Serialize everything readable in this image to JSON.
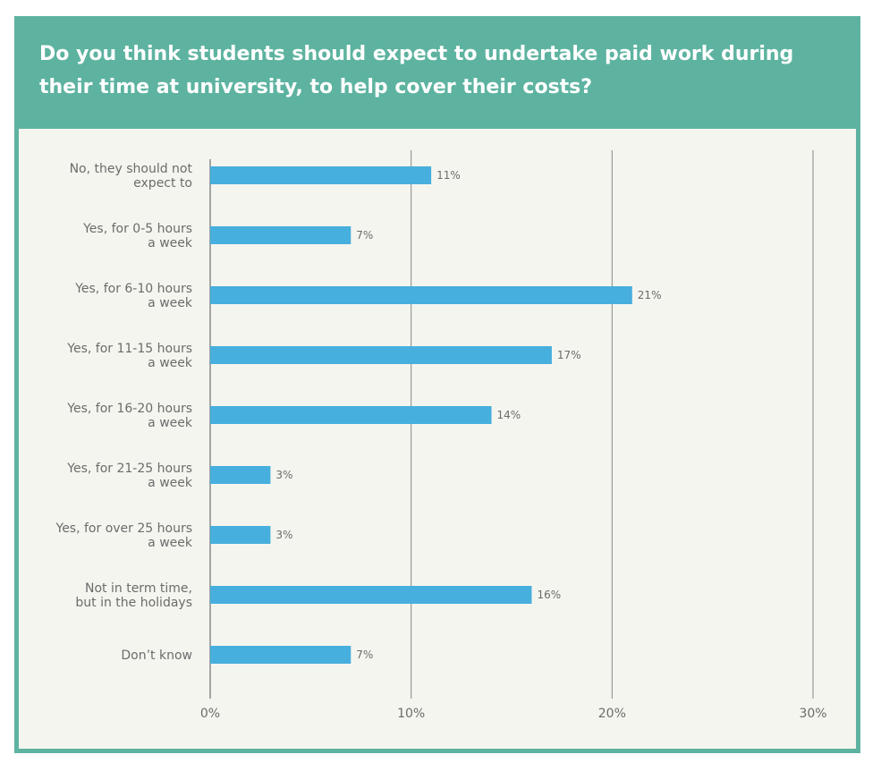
{
  "title": "Do you think students should expect to undertake paid work during their time at university, to help cover their costs?",
  "colors": {
    "header": "#5db3a0",
    "panel": "#f5f5f0",
    "bar": "#47afdd",
    "grid": "#888888",
    "text": "#6b6b6b"
  },
  "chart_data": {
    "type": "bar",
    "orientation": "horizontal",
    "categories": [
      [
        "No, they should not",
        "expect to"
      ],
      [
        "Yes, for 0-5 hours",
        "a week"
      ],
      [
        "Yes, for 6-10 hours",
        "a week"
      ],
      [
        "Yes, for 11-15 hours",
        "a week"
      ],
      [
        "Yes, for 16-20 hours",
        "a week"
      ],
      [
        "Yes, for 21-25 hours",
        "a week"
      ],
      [
        "Yes, for over 25 hours",
        "a week"
      ],
      [
        "Not in term time,",
        "but in the holidays"
      ],
      [
        "Don’t know"
      ]
    ],
    "values": [
      11,
      7,
      21,
      17,
      14,
      3,
      3,
      16,
      7
    ],
    "value_labels": [
      "11%",
      "7%",
      "21%",
      "17%",
      "14%",
      "3%",
      "3%",
      "16%",
      "7%"
    ],
    "xlim": [
      0,
      30
    ],
    "xticks": [
      0,
      10,
      20,
      30
    ],
    "xtick_labels": [
      "0%",
      "10%",
      "20%",
      "30%"
    ],
    "grid": true,
    "title": "Do you think students should expect to undertake paid work during their time at university, to help cover their costs?"
  }
}
